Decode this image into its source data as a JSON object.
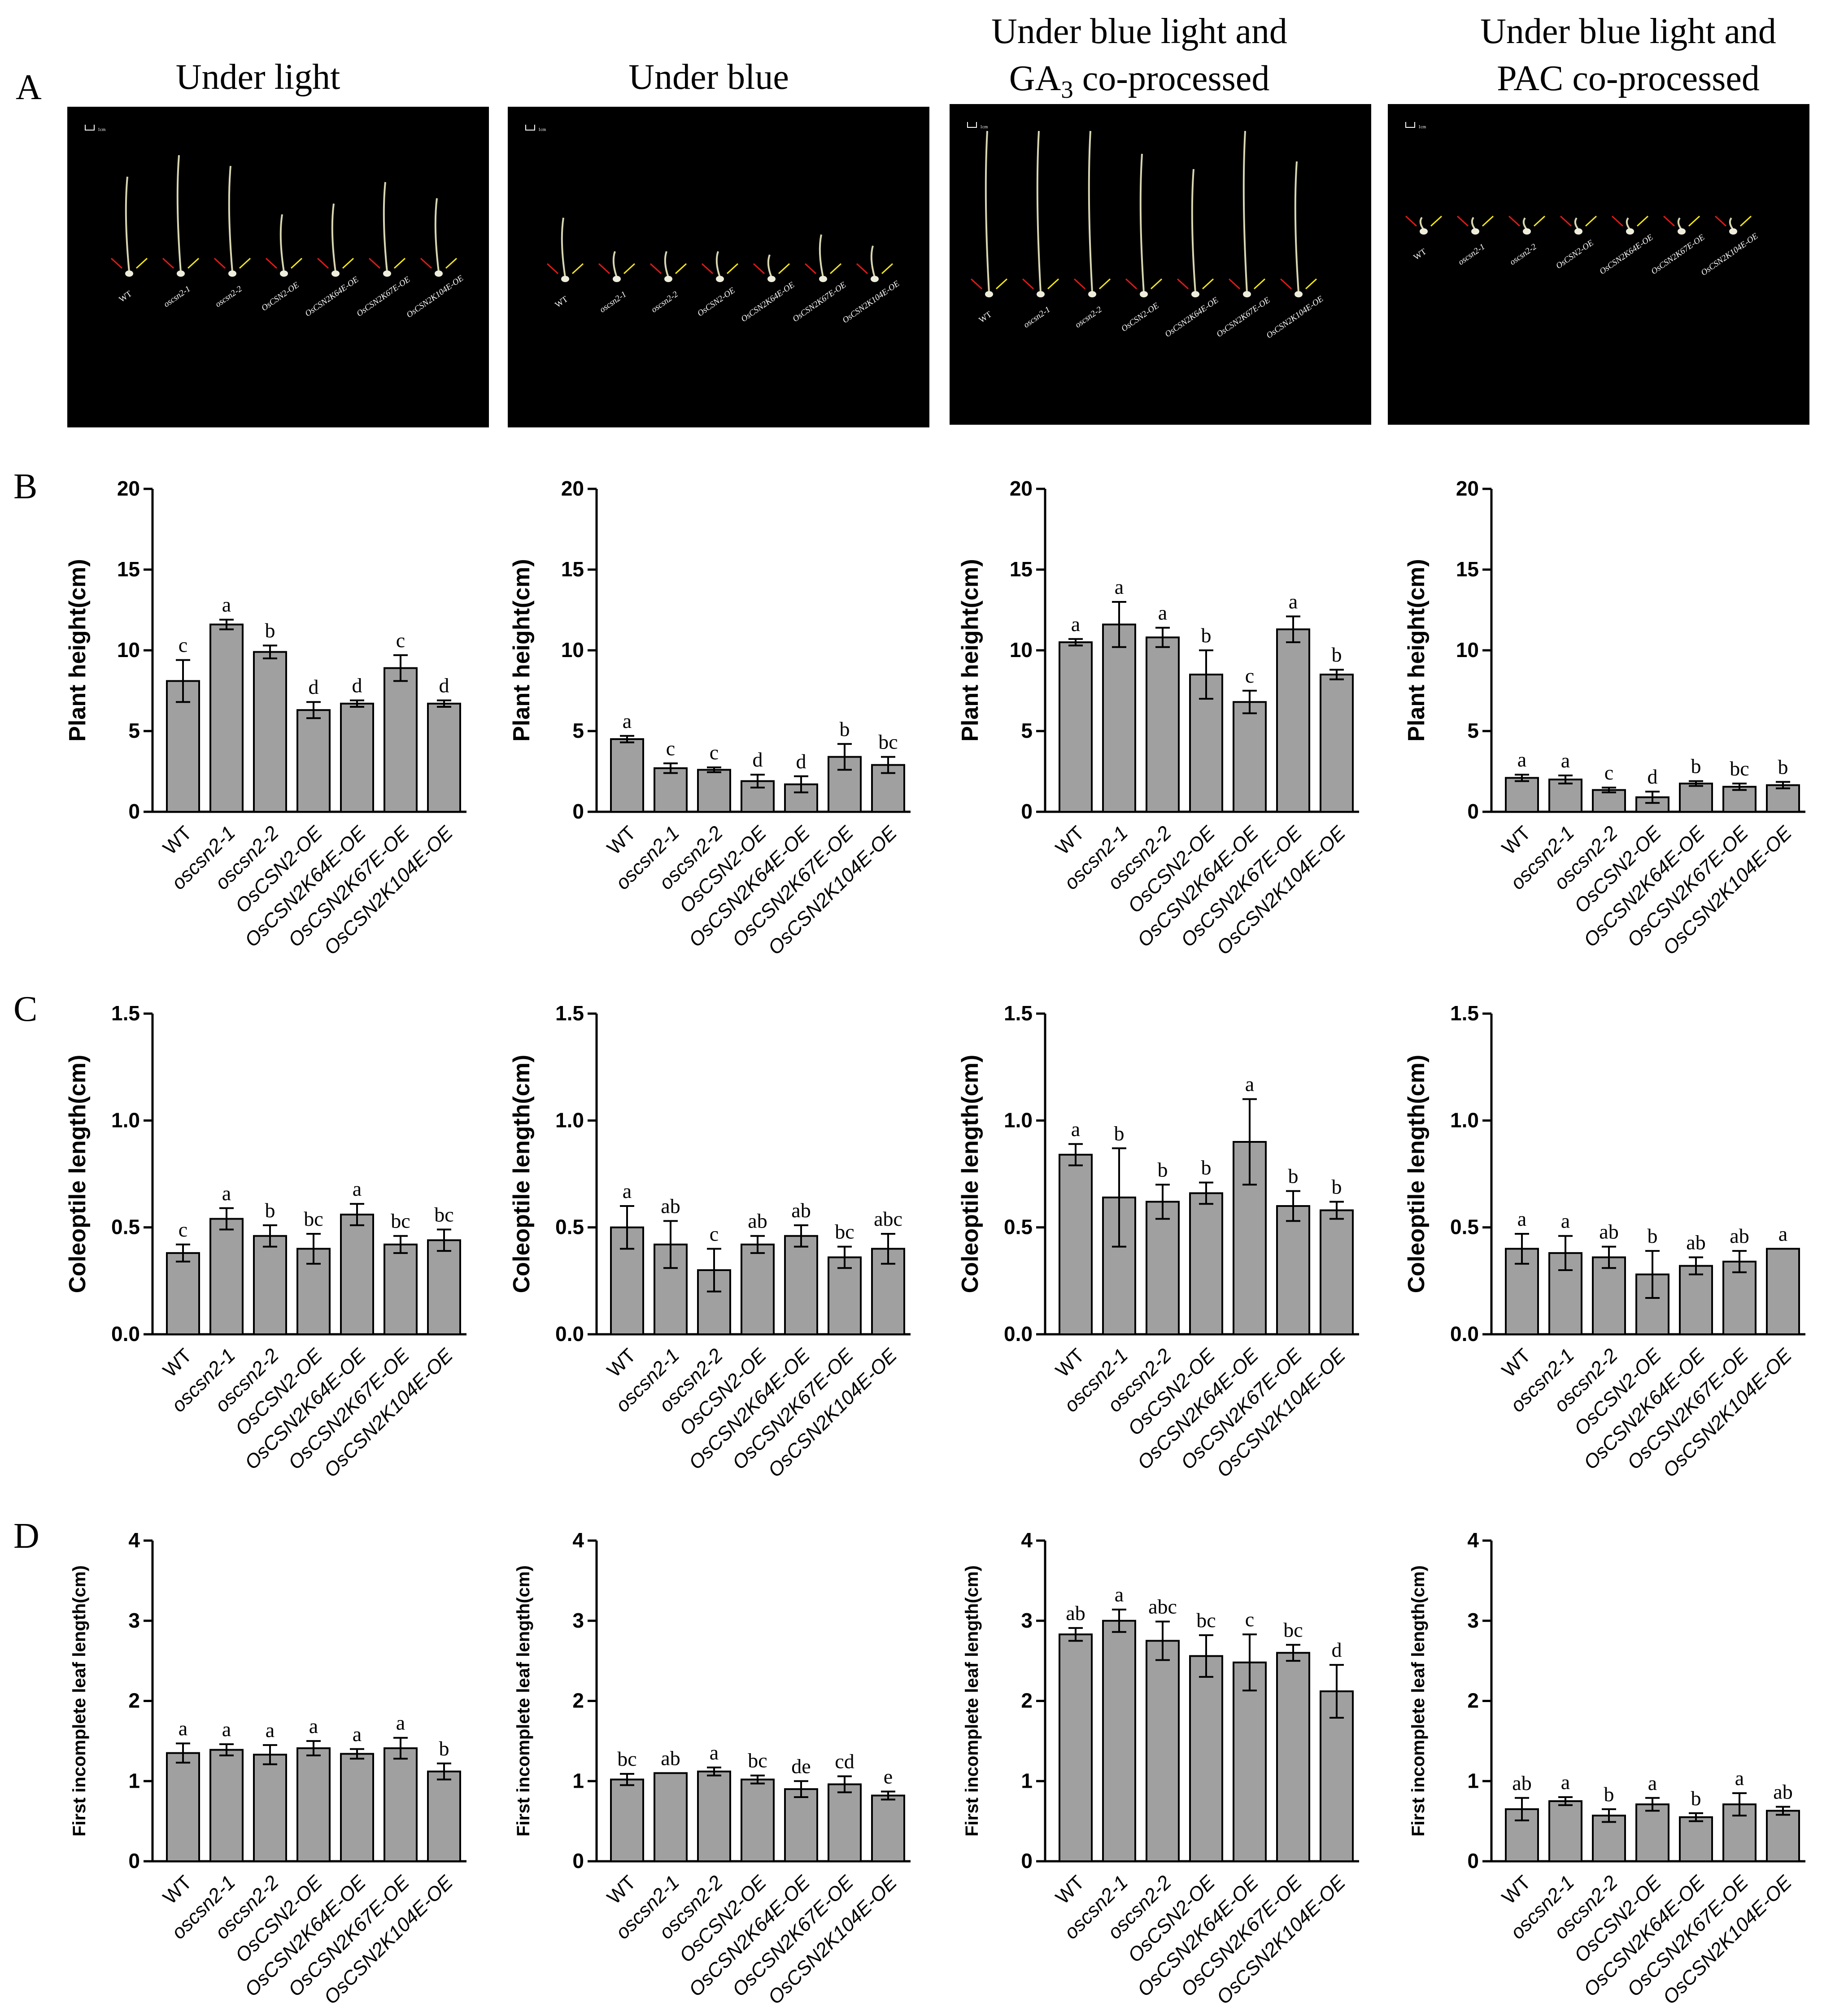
{
  "panel_letters": [
    "A",
    "B",
    "C",
    "D"
  ],
  "column_titles": [
    [
      "Under light"
    ],
    [
      "Under blue"
    ],
    [
      "Under blue light and",
      "GA3 co-processed"
    ],
    [
      "Under blue light and",
      "PAC co-processed"
    ]
  ],
  "photo_labels": [
    "WT",
    "oscsn2-1",
    "oscsn2-2",
    "OsCSN2-OE",
    "OsCSN2K64E-OE",
    "OsCSN2K67E-OE",
    "OsCSN2K104E-OE"
  ],
  "scale_bar_label": "1cm",
  "colors": {
    "bar": "#a0a0a0",
    "photo_bg": "#000000",
    "plant": "#d8d6b0",
    "arrow_red": "#e01a1a",
    "arrow_yellow": "#f2e51c"
  },
  "chart_data": [
    {
      "type": "bar",
      "row": "B",
      "column": 1,
      "ylabel": "Plant height(cm)",
      "ylim": [
        0,
        20
      ],
      "yticks": [
        0,
        5,
        10,
        15,
        20
      ],
      "categories": [
        "WT",
        "oscsn2-1",
        "oscsn2-2",
        "OsCSN2-OE",
        "OsCSN2K64E-OE",
        "OsCSN2K67E-OE",
        "OsCSN2K104E-OE"
      ],
      "values": [
        8.1,
        11.6,
        9.9,
        6.3,
        6.7,
        8.9,
        6.7
      ],
      "errors": [
        1.3,
        0.3,
        0.4,
        0.5,
        0.2,
        0.8,
        0.2
      ],
      "letters": [
        "c",
        "a",
        "b",
        "d",
        "d",
        "c",
        "d"
      ]
    },
    {
      "type": "bar",
      "row": "B",
      "column": 2,
      "ylabel": "Plant height(cm)",
      "ylim": [
        0,
        20
      ],
      "yticks": [
        0,
        5,
        10,
        15,
        20
      ],
      "categories": [
        "WT",
        "oscsn2-1",
        "oscsn2-2",
        "OsCSN2-OE",
        "OsCSN2K64E-OE",
        "OsCSN2K67E-OE",
        "OsCSN2K104E-OE"
      ],
      "values": [
        4.5,
        2.7,
        2.6,
        1.9,
        1.7,
        3.4,
        2.9
      ],
      "errors": [
        0.2,
        0.3,
        0.15,
        0.4,
        0.5,
        0.8,
        0.5
      ],
      "letters": [
        "a",
        "c",
        "c",
        "d",
        "d",
        "b",
        "bc"
      ]
    },
    {
      "type": "bar",
      "row": "B",
      "column": 3,
      "ylabel": "Plant height(cm)",
      "ylim": [
        0,
        20
      ],
      "yticks": [
        0,
        5,
        10,
        15,
        20
      ],
      "categories": [
        "WT",
        "oscsn2-1",
        "oscsn2-2",
        "OsCSN2-OE",
        "OsCSN2K64E-OE",
        "OsCSN2K67E-OE",
        "OsCSN2K104E-OE"
      ],
      "values": [
        10.5,
        11.6,
        10.8,
        8.5,
        6.8,
        11.3,
        8.5
      ],
      "errors": [
        0.2,
        1.4,
        0.6,
        1.5,
        0.7,
        0.8,
        0.3
      ],
      "letters": [
        "a",
        "a",
        "a",
        "b",
        "c",
        "a",
        "b"
      ]
    },
    {
      "type": "bar",
      "row": "B",
      "column": 4,
      "ylabel": "Plant height(cm)",
      "ylim": [
        0,
        20
      ],
      "yticks": [
        0,
        5,
        10,
        15,
        20
      ],
      "categories": [
        "WT",
        "oscsn2-1",
        "oscsn2-2",
        "OsCSN2-OE",
        "OsCSN2K64E-OE",
        "OsCSN2K67E-OE",
        "OsCSN2K104E-OE"
      ],
      "values": [
        2.1,
        2.0,
        1.35,
        0.9,
        1.75,
        1.55,
        1.65
      ],
      "errors": [
        0.2,
        0.25,
        0.15,
        0.35,
        0.15,
        0.2,
        0.2
      ],
      "letters": [
        "a",
        "a",
        "c",
        "d",
        "b",
        "bc",
        "b"
      ]
    },
    {
      "type": "bar",
      "row": "C",
      "column": 1,
      "ylabel": "Coleoptile length(cm)",
      "ylim": [
        0,
        1.5
      ],
      "yticks": [
        "0.0",
        "0.5",
        "1.0",
        "1.5"
      ],
      "categories": [
        "WT",
        "oscsn2-1",
        "oscsn2-2",
        "OsCSN2-OE",
        "OsCSN2K64E-OE",
        "OsCSN2K67E-OE",
        "OsCSN2K104E-OE"
      ],
      "values": [
        0.38,
        0.54,
        0.46,
        0.4,
        0.56,
        0.42,
        0.44
      ],
      "errors": [
        0.04,
        0.05,
        0.05,
        0.07,
        0.05,
        0.04,
        0.05
      ],
      "letters": [
        "c",
        "a",
        "b",
        "bc",
        "a",
        "bc",
        "bc"
      ]
    },
    {
      "type": "bar",
      "row": "C",
      "column": 2,
      "ylabel": "Coleoptile length(cm)",
      "ylim": [
        0,
        1.5
      ],
      "yticks": [
        "0.0",
        "0.5",
        "1.0",
        "1.5"
      ],
      "categories": [
        "WT",
        "oscsn2-1",
        "oscsn2-2",
        "OsCSN2-OE",
        "OsCSN2K64E-OE",
        "OsCSN2K67E-OE",
        "OsCSN2K104E-OE"
      ],
      "values": [
        0.5,
        0.42,
        0.3,
        0.42,
        0.46,
        0.36,
        0.4
      ],
      "errors": [
        0.1,
        0.11,
        0.1,
        0.04,
        0.05,
        0.05,
        0.07
      ],
      "letters": [
        "a",
        "ab",
        "c",
        "ab",
        "ab",
        "bc",
        "abc"
      ]
    },
    {
      "type": "bar",
      "row": "C",
      "column": 3,
      "ylabel": "Coleoptile length(cm)",
      "ylim": [
        0,
        1.5
      ],
      "yticks": [
        "0.0",
        "0.5",
        "1.0",
        "1.5"
      ],
      "categories": [
        "WT",
        "oscsn2-1",
        "oscsn2-2",
        "OsCSN2-OE",
        "OsCSN2K64E-OE",
        "OsCSN2K67E-OE",
        "OsCSN2K104E-OE"
      ],
      "values": [
        0.84,
        0.64,
        0.62,
        0.66,
        0.9,
        0.6,
        0.58
      ],
      "errors": [
        0.05,
        0.23,
        0.08,
        0.05,
        0.2,
        0.07,
        0.04
      ],
      "letters": [
        "a",
        "b",
        "b",
        "b",
        "a",
        "b",
        "b"
      ]
    },
    {
      "type": "bar",
      "row": "C",
      "column": 4,
      "ylabel": "Coleoptile length(cm)",
      "ylim": [
        0,
        1.5
      ],
      "yticks": [
        "0.0",
        "0.5",
        "1.0",
        "1.5"
      ],
      "categories": [
        "WT",
        "oscsn2-1",
        "oscsn2-2",
        "OsCSN2-OE",
        "OsCSN2K64E-OE",
        "OsCSN2K67E-OE",
        "OsCSN2K104E-OE"
      ],
      "values": [
        0.4,
        0.38,
        0.36,
        0.28,
        0.32,
        0.34,
        0.4
      ],
      "errors": [
        0.07,
        0.08,
        0.05,
        0.11,
        0.04,
        0.05,
        0
      ],
      "letters": [
        "a",
        "a",
        "ab",
        "b",
        "ab",
        "ab",
        "a"
      ]
    },
    {
      "type": "bar",
      "row": "D",
      "column": 1,
      "ylabel": "First incomplete leaf length(cm)",
      "ylim": [
        0,
        4
      ],
      "yticks": [
        0,
        1,
        2,
        3,
        4
      ],
      "categories": [
        "WT",
        "oscsn2-1",
        "oscsn2-2",
        "OsCSN2-OE",
        "OsCSN2K64E-OE",
        "OsCSN2K67E-OE",
        "OsCSN2K104E-OE"
      ],
      "values": [
        1.35,
        1.39,
        1.33,
        1.41,
        1.34,
        1.41,
        1.12
      ],
      "errors": [
        0.12,
        0.07,
        0.12,
        0.09,
        0.06,
        0.13,
        0.1
      ],
      "letters": [
        "a",
        "a",
        "a",
        "a",
        "a",
        "a",
        "b"
      ]
    },
    {
      "type": "bar",
      "row": "D",
      "column": 2,
      "ylabel": "First incomplete leaf length(cm)",
      "ylim": [
        0,
        4
      ],
      "yticks": [
        0,
        1,
        2,
        3,
        4
      ],
      "categories": [
        "WT",
        "oscsn2-1",
        "oscsn2-2",
        "OsCSN2-OE",
        "OsCSN2K64E-OE",
        "OsCSN2K67E-OE",
        "OsCSN2K104E-OE"
      ],
      "values": [
        1.02,
        1.1,
        1.12,
        1.02,
        0.9,
        0.96,
        0.82
      ],
      "errors": [
        0.07,
        0,
        0.05,
        0.05,
        0.1,
        0.1,
        0.05
      ],
      "letters": [
        "bc",
        "ab",
        "a",
        "bc",
        "de",
        "cd",
        "e"
      ]
    },
    {
      "type": "bar",
      "row": "D",
      "column": 3,
      "ylabel": "First incomplete leaf length(cm)",
      "ylim": [
        0,
        4
      ],
      "yticks": [
        0,
        1,
        2,
        3,
        4
      ],
      "categories": [
        "WT",
        "oscsn2-1",
        "oscsn2-2",
        "OsCSN2-OE",
        "OsCSN2K64E-OE",
        "OsCSN2K67E-OE",
        "OsCSN2K104E-OE"
      ],
      "values": [
        2.83,
        3.0,
        2.75,
        2.56,
        2.48,
        2.6,
        2.12
      ],
      "errors": [
        0.08,
        0.14,
        0.24,
        0.26,
        0.35,
        0.1,
        0.33
      ],
      "letters": [
        "ab",
        "a",
        "abc",
        "bc",
        "c",
        "bc",
        "d"
      ]
    },
    {
      "type": "bar",
      "row": "D",
      "column": 4,
      "ylabel": "First incomplete leaf length(cm)",
      "ylim": [
        0,
        4
      ],
      "yticks": [
        0,
        1,
        2,
        3,
        4
      ],
      "categories": [
        "WT",
        "oscsn2-1",
        "oscsn2-2",
        "OsCSN2-OE",
        "OsCSN2K64E-OE",
        "OsCSN2K67E-OE",
        "OsCSN2K104E-OE"
      ],
      "values": [
        0.65,
        0.75,
        0.57,
        0.71,
        0.55,
        0.71,
        0.63
      ],
      "errors": [
        0.14,
        0.05,
        0.08,
        0.08,
        0.05,
        0.14,
        0.05
      ],
      "letters": [
        "ab",
        "a",
        "b",
        "a",
        "b",
        "a",
        "ab"
      ]
    }
  ]
}
